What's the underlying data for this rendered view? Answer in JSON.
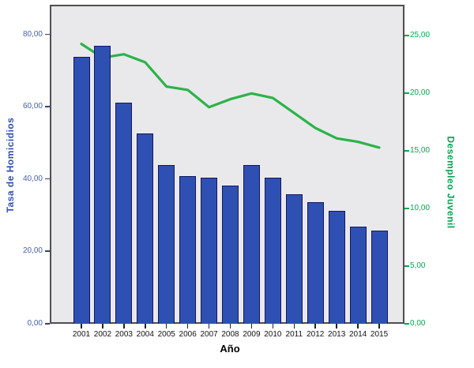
{
  "chart_data": {
    "type": "bar",
    "subtype": "dual-axis-bar-line",
    "title": "",
    "xlabel": "Año",
    "categories": [
      "2001",
      "2002",
      "2003",
      "2004",
      "2005",
      "2006",
      "2007",
      "2008",
      "2009",
      "2010",
      "2011",
      "2012",
      "2013",
      "2014",
      "2015"
    ],
    "series": [
      {
        "name": "Tasa de Homicidios",
        "type": "bar",
        "axis": "left",
        "color": "#2e50b2",
        "border_color": "#16165e",
        "values": [
          73.8,
          76.9,
          61.1,
          52.7,
          44.0,
          40.9,
          40.4,
          38.3,
          43.9,
          40.4,
          35.9,
          33.6,
          31.2,
          26.9,
          25.7
        ]
      },
      {
        "name": "Desempleo Juvenil",
        "type": "line",
        "axis": "right",
        "color": "#2bb34a",
        "values": [
          24.3,
          23.1,
          23.4,
          22.7,
          20.6,
          20.3,
          18.8,
          19.5,
          20.0,
          19.6,
          18.3,
          17.0,
          16.1,
          15.8,
          15.3
        ]
      }
    ],
    "y_left": {
      "title": "Tasa de Homicidios",
      "color": "#2f4fae",
      "ticks": [
        0,
        20,
        40,
        60,
        80
      ],
      "tick_labels": [
        "0,00",
        "20,00",
        "40,00",
        "60,00",
        "80,00"
      ],
      "display_range": [
        0,
        88.3
      ]
    },
    "y_right": {
      "title": "Desempleo Juvenil",
      "color": "#00a651",
      "ticks": [
        0,
        5,
        10,
        15,
        20,
        25
      ],
      "tick_labels": [
        "0,00",
        "5,00",
        "10,00",
        "15,00",
        "20,00",
        "25,00"
      ],
      "display_range": [
        0,
        27.7
      ]
    },
    "grid": false,
    "legend": "none",
    "plot_background": "#e9e9eb"
  }
}
